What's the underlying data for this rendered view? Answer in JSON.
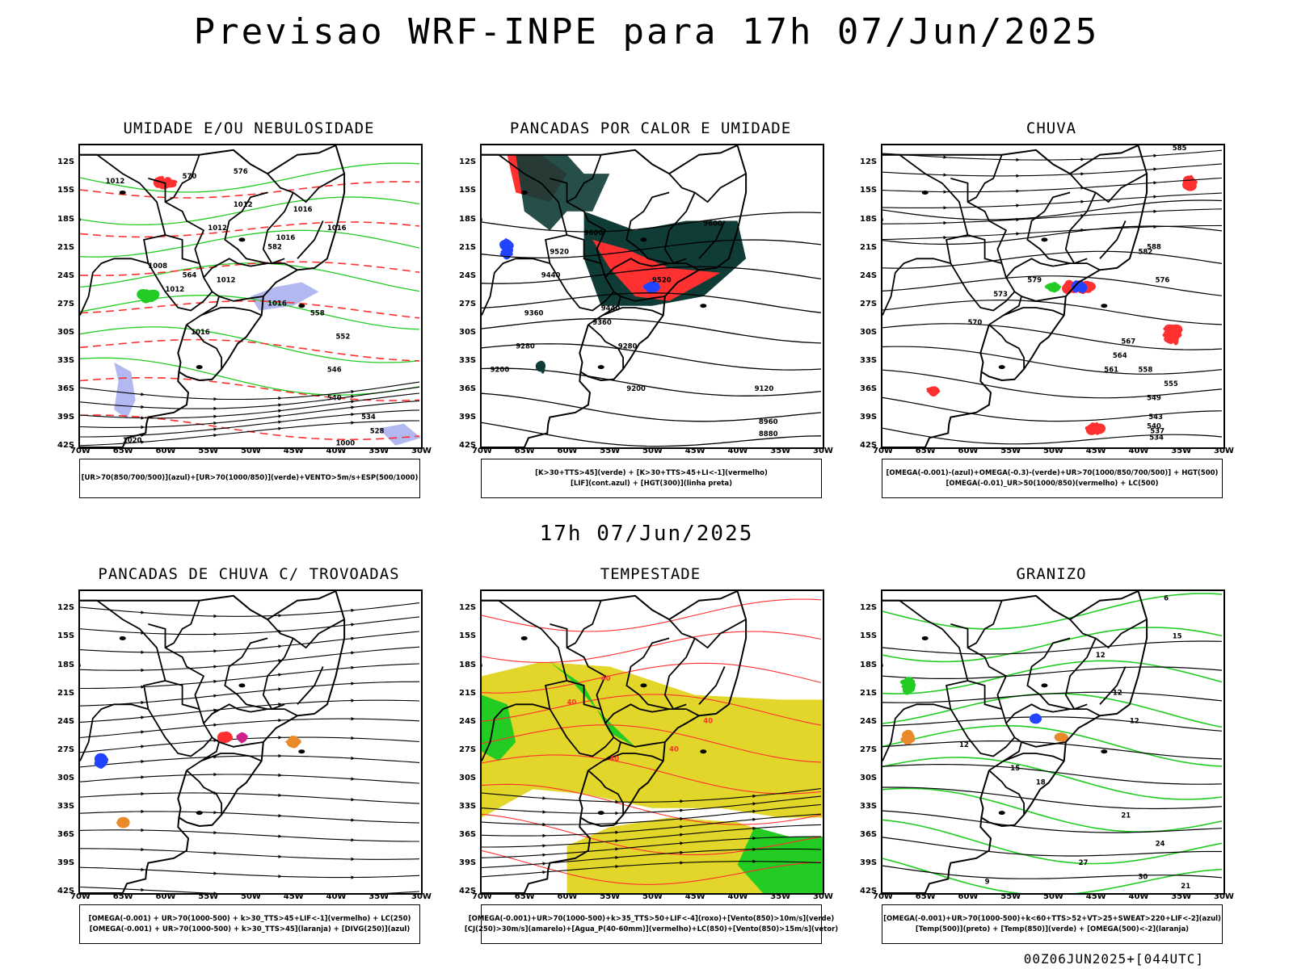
{
  "header": {
    "title": "Previsao WRF-INPE  para 17h 07/Jun/2025",
    "mid_time": "17h 07/Jun/2025",
    "footer_stamp": "00Z06JUN2025+[044UTC]"
  },
  "axes": {
    "lat_labels": [
      "12S",
      "15S",
      "18S",
      "21S",
      "24S",
      "27S",
      "30S",
      "33S",
      "36S",
      "39S",
      "42S"
    ],
    "lon_labels": [
      "70W",
      "65W",
      "60W",
      "55W",
      "50W",
      "45W",
      "40W",
      "35W",
      "30W"
    ]
  },
  "panels": [
    {
      "id": "umidade",
      "title": "UMIDADE E/OU NEBULOSIDADE",
      "legend": [
        "[UR>70(850/700/500)](azul)+[UR>70(1000/850)](verde)+VENTO>5m/s+ESP(500/1000)"
      ],
      "labels": [
        "1012",
        "1012",
        "1016",
        "1012",
        "1016",
        "1012",
        "1008",
        "1012",
        "1016",
        "1016",
        "1020",
        "1000",
        "1016",
        "570",
        "576",
        "582",
        "564",
        "558",
        "552",
        "546",
        "540",
        "534",
        "528"
      ]
    },
    {
      "id": "pancadas-calor",
      "title": "PANCADAS POR CALOR E UMIDADE",
      "legend": [
        "[K>30+TTS>45](verde) + [K>30+TTS>45+LI<-1](vermelho)",
        "[LIF](cont.azul) + [HGT(300)](linha preta)"
      ],
      "labels": [
        "9600",
        "9520",
        "9440",
        "9360",
        "9280",
        "9200",
        "9600",
        "9520",
        "9440",
        "9360",
        "9280",
        "9200",
        "9120",
        "8960",
        "8880"
      ]
    },
    {
      "id": "chuva",
      "title": "CHUVA",
      "legend": [
        "[OMEGA(-0.001)-(azul)+OMEGA(-0.3)-(verde)+UR>70(1000/850/700/500)] + HGT(500)",
        "[OMEGA(-0.01)_UR>50(1000/850)(vermelho) + LC(500)"
      ],
      "labels": [
        "582",
        "579",
        "576",
        "573",
        "570",
        "567",
        "564",
        "561",
        "558",
        "555",
        "549",
        "543",
        "540",
        "537",
        "534",
        "585",
        "588"
      ]
    },
    {
      "id": "pancadas-trovoadas",
      "title": "PANCADAS DE CHUVA C/ TROVOADAS",
      "legend": [
        "[OMEGA(-0.001) + UR>70(1000-500) + k>30_TTS>45+LIF<-1](vermelho) + LC(250)",
        "[OMEGA(-0.001) + UR>70(1000-500) + k>30_TTS>45](laranja) + [DIVG(250)](azul)"
      ],
      "labels": []
    },
    {
      "id": "tempestade",
      "title": "TEMPESTADE",
      "legend": [
        "[OMEGA(-0.001)+UR>70(1000-500)+k>35_TTS>50+LIF<-4](roxo)+[Vento(850)>10m/s](verde)",
        "[CJ(250)>30m/s](amarelo)+[Agua_P(40-60mm)](vermelho)+LC(850)+[Vento(850)>15m/s](vetor)"
      ],
      "labels": [
        "40",
        "40",
        "40",
        "40",
        "40"
      ]
    },
    {
      "id": "granizo",
      "title": "GRANIZO",
      "legend": [
        "[OMEGA(-0.001)+UR>70(1000-500)+k<60+TTS>52+VT>25+SWEAT>220+LIF<-2](azul)",
        "[Temp(500)](preto) + [Temp(850)](verde) + [OMEGA(500)<-2](laranja)"
      ],
      "labels": [
        "12",
        "12",
        "12",
        "15",
        "18",
        "21",
        "24",
        "27",
        "30",
        "21",
        "9",
        "6",
        "12",
        "15"
      ]
    }
  ],
  "colors": {
    "green": "#22cc22",
    "red": "#ff3030",
    "blue": "#2244ff",
    "lavender": "#aab0ee",
    "darkgreen": "#0f3c36",
    "yellow": "#e3d62a",
    "orange": "#e88a2a",
    "magenta": "#d0208a"
  }
}
